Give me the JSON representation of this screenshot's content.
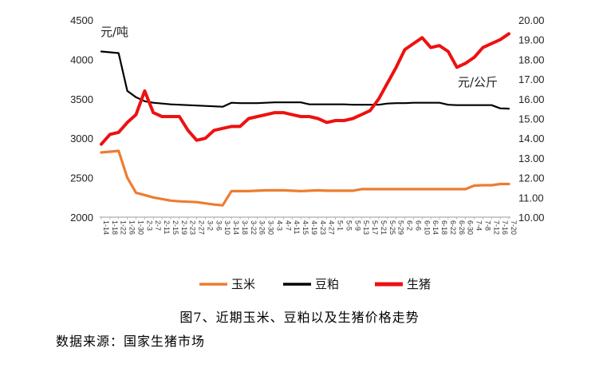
{
  "caption": "图7、近期玉米、豆粕以及生猪价格走势",
  "source": "数据来源：国家生猪市场",
  "chart_data": {
    "type": "line",
    "title": "",
    "left_axis": {
      "unit_label": "元/吨",
      "range": [
        2000,
        4500
      ],
      "ticks": [
        "2000",
        "2500",
        "3000",
        "3500",
        "4000",
        "4500"
      ]
    },
    "right_axis": {
      "unit_label": "元/公斤",
      "range": [
        10.0,
        20.0
      ],
      "ticks": [
        "10.00",
        "11.00",
        "12.00",
        "13.00",
        "14.00",
        "15.00",
        "16.00",
        "17.00",
        "18.00",
        "19.00",
        "20.00"
      ]
    },
    "x_ticks": [
      "1-14",
      "1-18",
      "1-22",
      "1-26",
      "1-30",
      "2-3",
      "2-7",
      "2-11",
      "2-15",
      "2-19",
      "2-23",
      "2-27",
      "3-2",
      "3-6",
      "3-10",
      "3-14",
      "3-18",
      "3-22",
      "3-26",
      "3-30",
      "4-3",
      "4-7",
      "4-11",
      "4-15",
      "4-19",
      "4-23",
      "4-27",
      "5-1",
      "5-5",
      "5-9",
      "5-13",
      "5-17",
      "5-21",
      "5-25",
      "5-29",
      "6-2",
      "6-6",
      "6-10",
      "6-14",
      "6-18",
      "6-22",
      "6-26",
      "6-30",
      "7-4",
      "7-8",
      "7-12",
      "7-16",
      "7-20"
    ],
    "legend_position": "bottom",
    "grid": false,
    "series": [
      {
        "name": "玉米",
        "axis": "left",
        "color": "#ED7D31",
        "x": [
          0,
          1,
          2,
          3,
          4,
          5,
          6,
          7,
          8,
          9,
          10,
          11,
          12,
          13,
          14,
          15,
          16,
          17,
          18,
          19,
          20,
          21,
          22,
          23,
          24,
          25,
          26,
          27,
          28,
          29,
          30,
          31,
          32,
          33,
          34,
          35,
          36,
          37,
          38,
          39,
          40,
          41,
          42,
          43,
          44,
          45,
          46,
          47
        ],
        "values": [
          2820,
          2830,
          2840,
          2500,
          2310,
          2280,
          2250,
          2230,
          2210,
          2200,
          2195,
          2190,
          2175,
          2160,
          2150,
          2330,
          2330,
          2330,
          2335,
          2340,
          2340,
          2340,
          2335,
          2330,
          2335,
          2340,
          2335,
          2335,
          2335,
          2335,
          2355,
          2355,
          2355,
          2355,
          2355,
          2355,
          2355,
          2355,
          2355,
          2355,
          2355,
          2355,
          2355,
          2400,
          2405,
          2405,
          2420,
          2420
        ]
      },
      {
        "name": "豆粕",
        "axis": "left",
        "color": "#000000",
        "x": [
          0,
          1,
          2,
          3,
          4,
          5,
          6,
          7,
          8,
          9,
          10,
          11,
          12,
          13,
          14,
          15,
          16,
          17,
          18,
          19,
          20,
          21,
          22,
          23,
          24,
          25,
          26,
          27,
          28,
          29,
          30,
          31,
          32,
          33,
          34,
          35,
          36,
          37,
          38,
          39,
          40,
          41,
          42,
          43,
          44,
          45,
          46,
          47
        ],
        "values": [
          4100,
          4090,
          4080,
          3600,
          3520,
          3470,
          3450,
          3440,
          3430,
          3425,
          3420,
          3415,
          3410,
          3405,
          3400,
          3450,
          3445,
          3445,
          3445,
          3450,
          3455,
          3455,
          3455,
          3455,
          3430,
          3430,
          3430,
          3430,
          3430,
          3425,
          3425,
          3425,
          3425,
          3440,
          3445,
          3445,
          3450,
          3450,
          3450,
          3450,
          3425,
          3420,
          3420,
          3420,
          3420,
          3420,
          3380,
          3375
        ]
      },
      {
        "name": "生猪",
        "axis": "right",
        "color": "#EE1111",
        "x": [
          0,
          1,
          2,
          3,
          4,
          5,
          6,
          7,
          8,
          9,
          10,
          11,
          12,
          13,
          14,
          15,
          16,
          17,
          18,
          19,
          20,
          21,
          22,
          23,
          24,
          25,
          26,
          27,
          28,
          29,
          30,
          31,
          32,
          33,
          34,
          35,
          36,
          37,
          38,
          39,
          40,
          41,
          42,
          43,
          44,
          45,
          46,
          47
        ],
        "values": [
          13.7,
          14.2,
          14.3,
          14.8,
          15.2,
          16.4,
          15.3,
          15.1,
          15.1,
          15.1,
          14.4,
          13.9,
          14.0,
          14.4,
          14.5,
          14.6,
          14.6,
          15.0,
          15.1,
          15.2,
          15.3,
          15.3,
          15.2,
          15.1,
          15.1,
          15.0,
          14.8,
          14.9,
          14.9,
          15.0,
          15.2,
          15.4,
          16.0,
          16.8,
          17.6,
          18.5,
          18.8,
          19.1,
          18.6,
          18.7,
          18.4,
          17.6,
          17.8,
          18.1,
          18.6,
          18.8,
          19.0,
          19.3
        ]
      }
    ]
  }
}
